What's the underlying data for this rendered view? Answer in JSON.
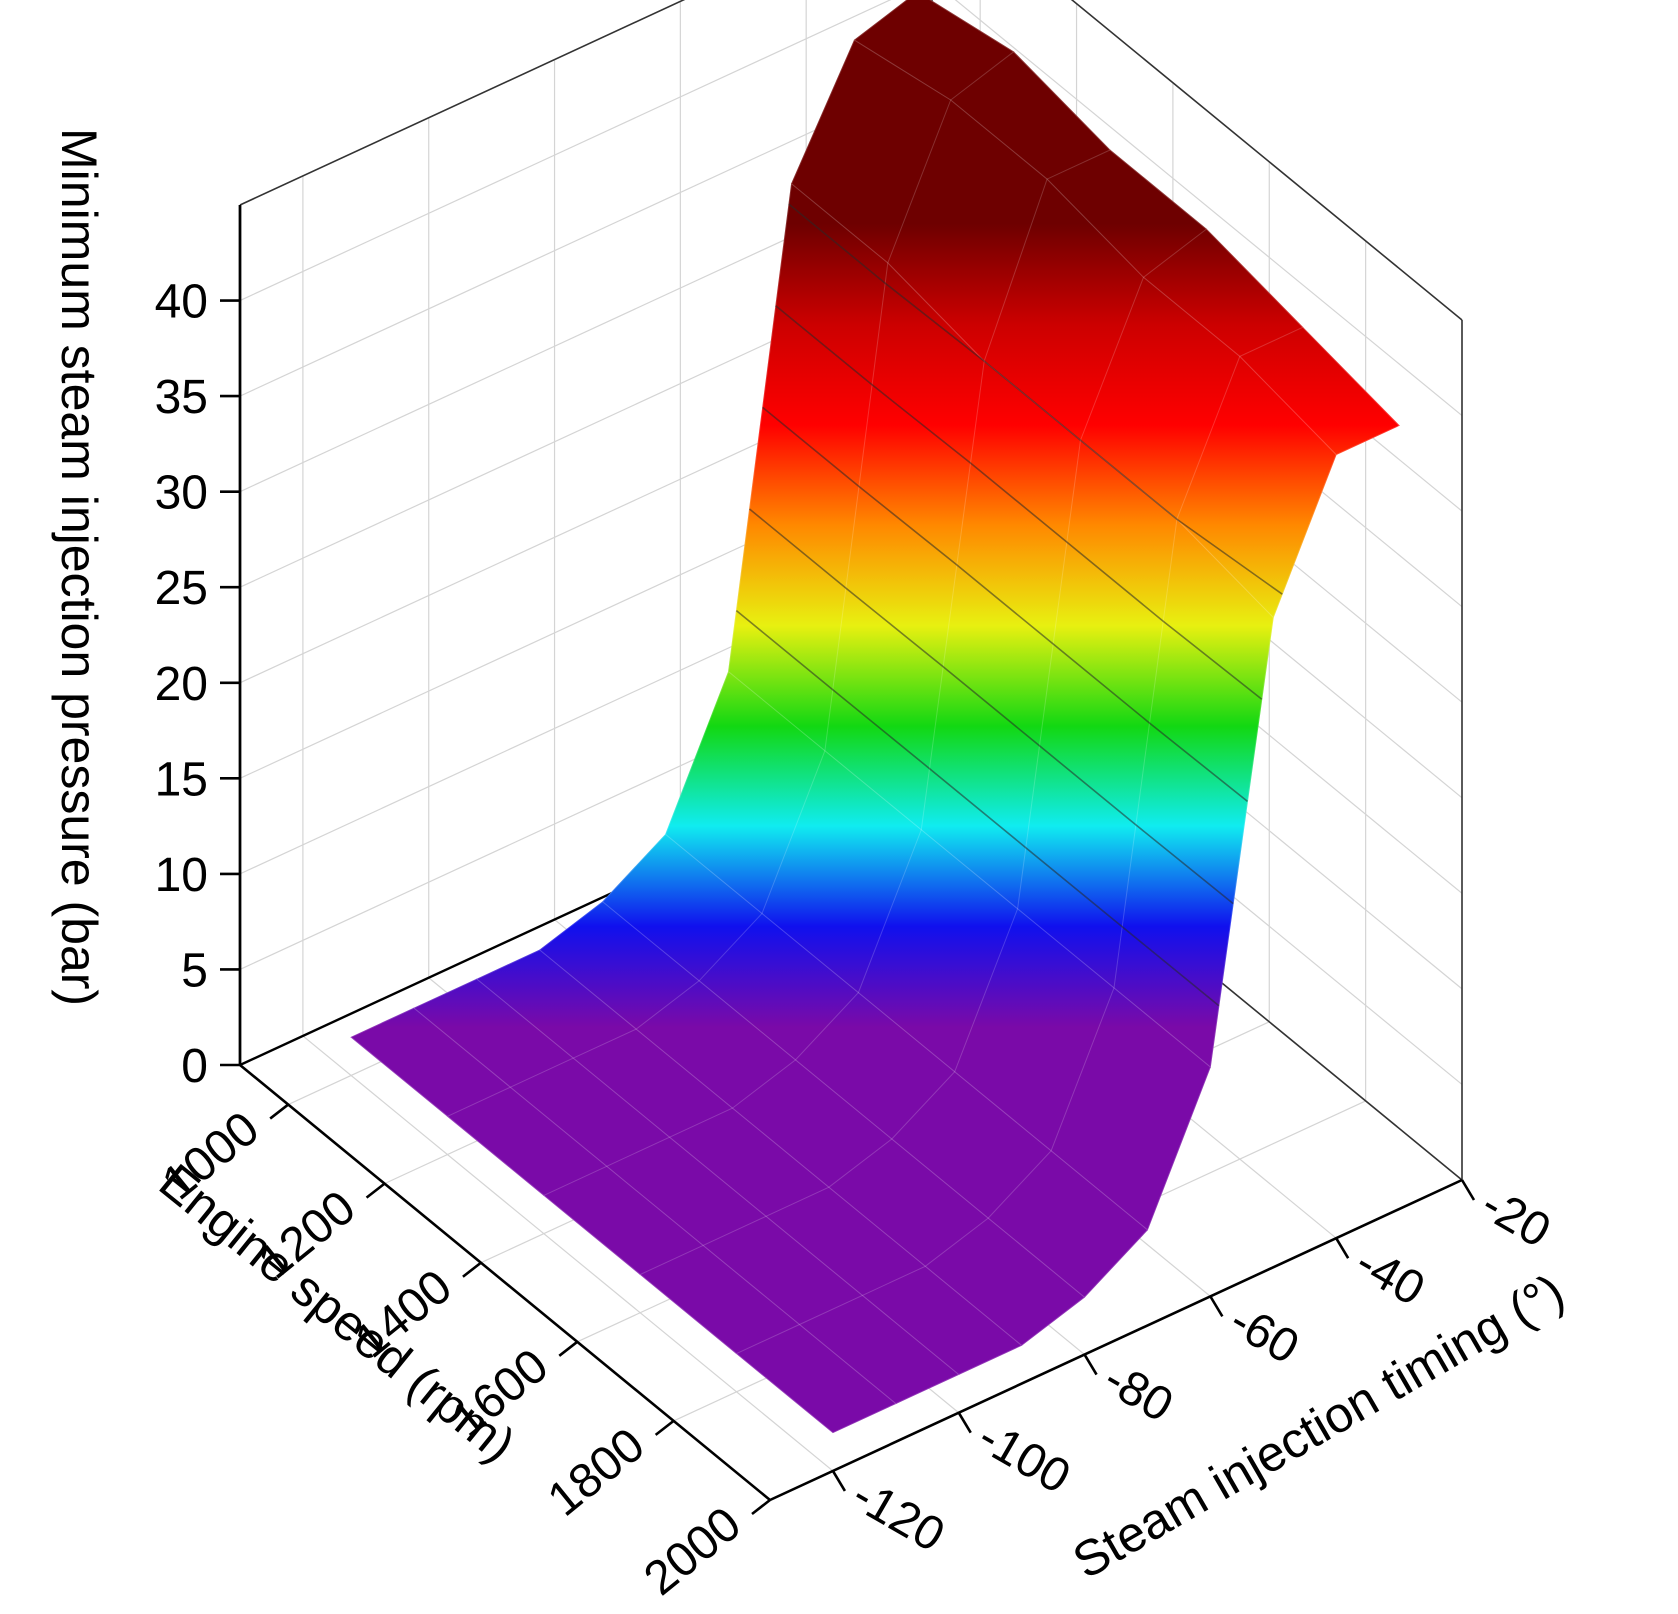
{
  "chart_data": {
    "type": "surface3d",
    "title": "",
    "x_axis": {
      "label": "Engine speed (rpm)",
      "ticks": [
        1000,
        1200,
        1400,
        1600,
        1800,
        2000
      ],
      "range": [
        900,
        2000
      ]
    },
    "y_axis": {
      "label": "Steam injection timing (°)",
      "ticks": [
        -120,
        -100,
        -80,
        -60,
        -40,
        -20
      ],
      "range": [
        -130,
        -20
      ]
    },
    "z_axis": {
      "label": "Minimum steam injection pressure (bar)",
      "ticks": [
        0,
        5,
        10,
        15,
        20,
        25,
        30,
        35,
        40
      ],
      "range": [
        0,
        45
      ]
    },
    "grid": true,
    "colormap": [
      "#7a0aa8",
      "#1010ee",
      "#10ecf0",
      "#12d812",
      "#e8f010",
      "#ff8800",
      "#ff0000",
      "#cc0000",
      "#6e0000"
    ],
    "engine_speed": [
      1000,
      1200,
      1400,
      1600,
      1800,
      2000
    ],
    "injection_timing": [
      -120,
      -110,
      -100,
      -90,
      -80,
      -70,
      -60,
      -50,
      -40,
      -30
    ],
    "pressure": [
      [
        2,
        2,
        2,
        2,
        3,
        5,
        12,
        36,
        42,
        43
      ],
      [
        2,
        2,
        2,
        2,
        3,
        5,
        12,
        36,
        43,
        44
      ],
      [
        2,
        2,
        2,
        2,
        3,
        5,
        12,
        35,
        43,
        43
      ],
      [
        2,
        2,
        2,
        2,
        3,
        5,
        12,
        35,
        42,
        43
      ],
      [
        2,
        2,
        2,
        2,
        3,
        5,
        12,
        35,
        42,
        42
      ],
      [
        2,
        2,
        2,
        2,
        3,
        5,
        12,
        34,
        41,
        41
      ]
    ]
  }
}
